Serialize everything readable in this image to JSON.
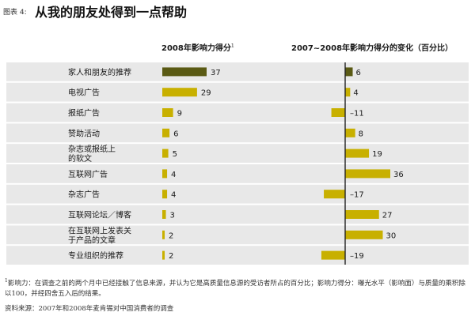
{
  "header": {
    "figure_label": "图表 4:",
    "title": "从我的朋友处得到一点帮助"
  },
  "columns": {
    "left_title": "2008年影响力得分",
    "left_sup": "1",
    "right_title": "2007~2008年影响力得分的变化（百分比）"
  },
  "colors": {
    "highlight_bar": "#5a5a14",
    "bar": "#c8b000",
    "row_band": "#e8e8e8",
    "axis": "#222222"
  },
  "chart_data": {
    "type": "bar",
    "title": "从我的朋友处得到一点帮助",
    "categories": [
      [
        "家人和朋友的推荐"
      ],
      [
        "电视广告"
      ],
      [
        "报纸广告"
      ],
      [
        "赞助活动"
      ],
      [
        "杂志或报纸上",
        "的软文"
      ],
      [
        "互联网广告"
      ],
      [
        "杂志广告"
      ],
      [
        "互联网论坛／博客"
      ],
      [
        "在互联网上发表关",
        "于产品的文章"
      ],
      [
        "专业组织的推荐"
      ]
    ],
    "series": [
      {
        "name": "2008年影响力得分",
        "values": [
          37,
          29,
          9,
          6,
          5,
          4,
          4,
          3,
          2,
          2
        ],
        "labels": [
          "37",
          "29",
          "9",
          "6",
          "5",
          "4",
          "4",
          "3",
          "2",
          "2"
        ]
      },
      {
        "name": "2007~2008年影响力得分的变化（百分比）",
        "values": [
          6,
          4,
          -11,
          8,
          19,
          36,
          -17,
          27,
          30,
          -19
        ],
        "labels": [
          "6",
          "4",
          "–11",
          "8",
          "19",
          "36",
          "–17",
          "27",
          "30",
          "–19"
        ]
      }
    ],
    "xlabel": "",
    "ylabel": ""
  },
  "footnotes": {
    "note_mark": "1",
    "note_text": "影响力：在调查之前的两个月中已经接触了信息来源，并认为它是高质量信息源的受访者所占的百分比；影响力得分：曝光水平（影响面）与质量的乘积除以100，并经四舍五入后的结果。",
    "source": "资料来源：2007年和2008年麦肯锡对中国消费者的调查"
  }
}
